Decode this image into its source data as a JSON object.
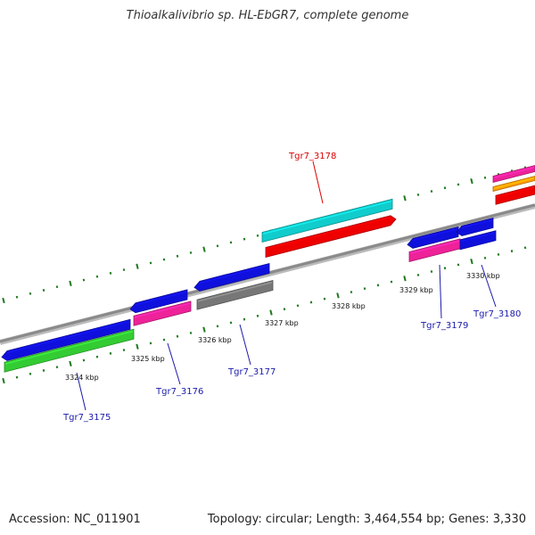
{
  "title": "Thioalkalivibrio sp. HL-EbGR7, complete genome",
  "footer": {
    "accession": "Accession: NC_011901",
    "stats": "Topology: circular; Length: 3,464,554 bp; Genes: 3,330"
  },
  "colors": {
    "backbone": "#8a8a8a",
    "tick": "#1e7a1e",
    "label_default": "#1a1aaa",
    "label_highlight": "#dd0000",
    "gene_blue": "#1010dd",
    "gene_green": "#33cc33",
    "gene_pink": "#ee2299",
    "gene_gray": "#777777",
    "gene_cyan": "#11cccc",
    "gene_red": "#ee0000",
    "gene_orange": "#ff9900"
  },
  "scale_labels": [
    "3324 kbp",
    "3325 kbp",
    "3326 kbp",
    "3327 kbp",
    "3328 kbp",
    "3329 kbp",
    "3330 kbp"
  ],
  "gene_labels": [
    {
      "text": "Tgr7_3175",
      "highlight": false
    },
    {
      "text": "Tgr7_3176",
      "highlight": false
    },
    {
      "text": "Tgr7_3177",
      "highlight": false
    },
    {
      "text": "Tgr7_3178",
      "highlight": true
    },
    {
      "text": "Tgr7_3179",
      "highlight": false
    },
    {
      "text": "Tgr7_3180",
      "highlight": false
    }
  ]
}
